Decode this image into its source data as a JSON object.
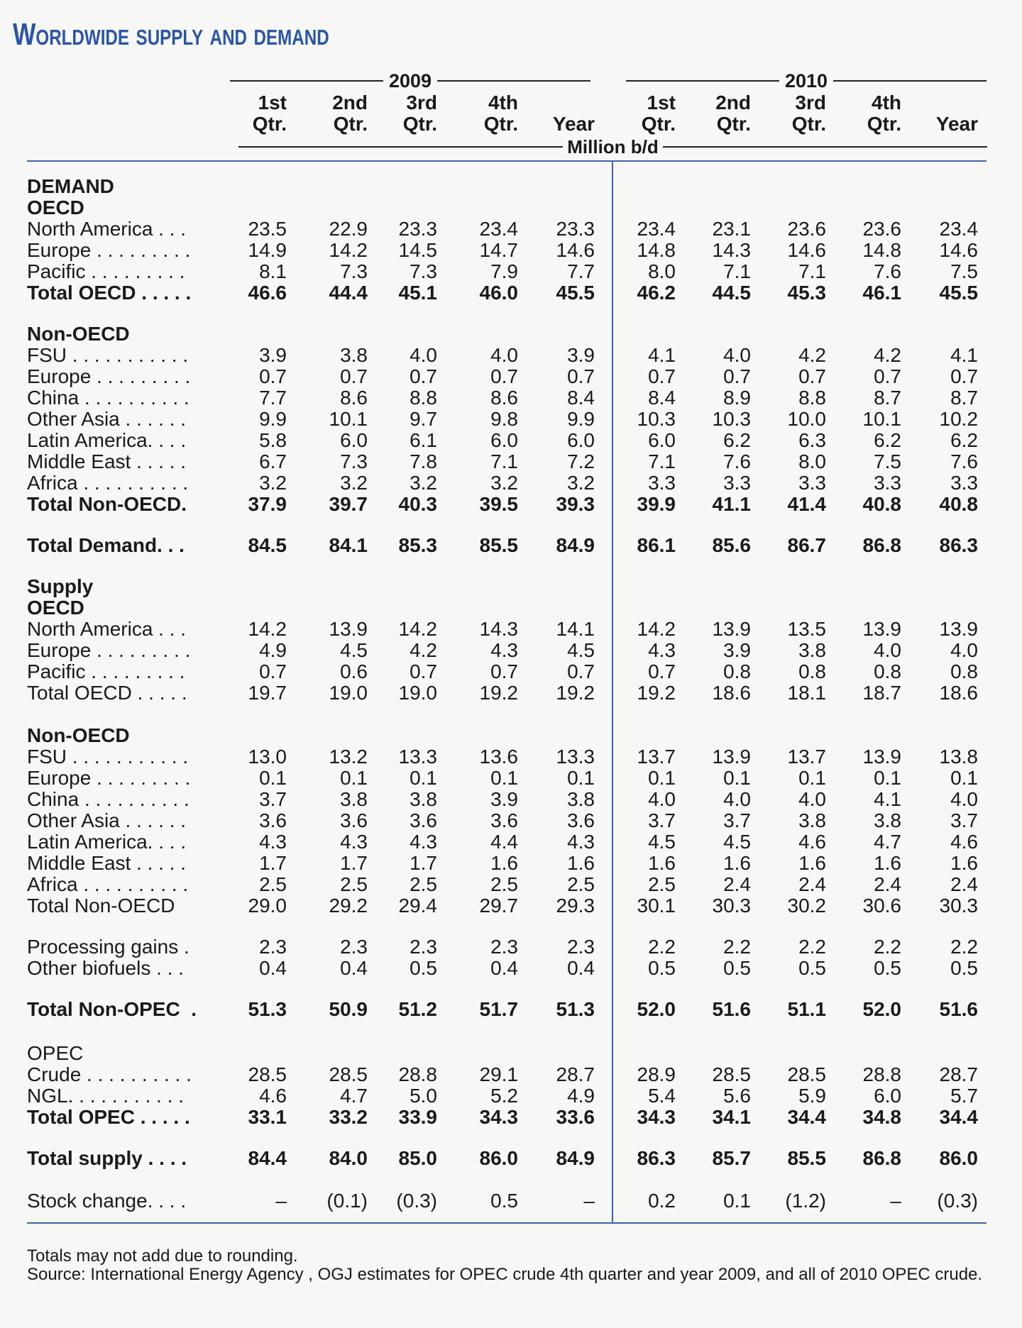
{
  "title": "Worldwide supply and demand",
  "years": [
    "2009",
    "2010"
  ],
  "column_headers": [
    "1st\nQtr.",
    "2nd\nQtr.",
    "3rd\nQtr.",
    "4th\nQtr.",
    "Year",
    "1st\nQtr.",
    "2nd\nQtr.",
    "3rd\nQtr.",
    "4th\nQtr.",
    "Year"
  ],
  "unit": "Million b/d",
  "sections": [
    {
      "heading": "DEMAND",
      "bold": true
    },
    {
      "heading": "OECD",
      "bold": true
    },
    {
      "heading": "Non-OECD",
      "bold": true
    },
    {
      "heading": "Supply",
      "bold": true
    },
    {
      "heading": "OECD",
      "bold": true
    },
    {
      "heading": "Non-OECD",
      "bold": true
    },
    {
      "heading": "OPEC",
      "bold": false
    }
  ],
  "rows": [
    {
      "label": "North America . . .",
      "bold": false,
      "values": [
        "23.5",
        "22.9",
        "23.3",
        "23.4",
        "23.3",
        "23.4",
        "23.1",
        "23.6",
        "23.6",
        "23.4"
      ]
    },
    {
      "label": "Europe . . . . . . . . .",
      "bold": false,
      "values": [
        "14.9",
        "14.2",
        "14.5",
        "14.7",
        "14.6",
        "14.8",
        "14.3",
        "14.6",
        "14.8",
        "14.6"
      ]
    },
    {
      "label": "Pacific . . . . . . . . .",
      "bold": false,
      "values": [
        "8.1",
        "7.3",
        "7.3",
        "7.9",
        "7.7",
        "8.0",
        "7.1",
        "7.1",
        "7.6",
        "7.5"
      ]
    },
    {
      "label": "Total OECD . . . . .",
      "bold": true,
      "values": [
        "46.6",
        "44.4",
        "45.1",
        "46.0",
        "45.5",
        "46.2",
        "44.5",
        "45.3",
        "46.1",
        "45.5"
      ]
    },
    {
      "label": "FSU . . . . . . . . . . .",
      "bold": false,
      "values": [
        "3.9",
        "3.8",
        "4.0",
        "4.0",
        "3.9",
        "4.1",
        "4.0",
        "4.2",
        "4.2",
        "4.1"
      ]
    },
    {
      "label": "Europe . . . . . . . . .",
      "bold": false,
      "values": [
        "0.7",
        "0.7",
        "0.7",
        "0.7",
        "0.7",
        "0.7",
        "0.7",
        "0.7",
        "0.7",
        "0.7"
      ]
    },
    {
      "label": "China . . . . . . . . . .",
      "bold": false,
      "values": [
        "7.7",
        "8.6",
        "8.8",
        "8.6",
        "8.4",
        "8.4",
        "8.9",
        "8.8",
        "8.7",
        "8.7"
      ]
    },
    {
      "label": "Other Asia . . . . . .",
      "bold": false,
      "values": [
        "9.9",
        "10.1",
        "9.7",
        "9.8",
        "9.9",
        "10.3",
        "10.3",
        "10.0",
        "10.1",
        "10.2"
      ]
    },
    {
      "label": "Latin America. . . .",
      "bold": false,
      "values": [
        "5.8",
        "6.0",
        "6.1",
        "6.0",
        "6.0",
        "6.0",
        "6.2",
        "6.3",
        "6.2",
        "6.2"
      ]
    },
    {
      "label": "Middle East . . . . .",
      "bold": false,
      "values": [
        "6.7",
        "7.3",
        "7.8",
        "7.1",
        "7.2",
        "7.1",
        "7.6",
        "8.0",
        "7.5",
        "7.6"
      ]
    },
    {
      "label": "Africa . . . . . . . . . .",
      "bold": false,
      "values": [
        "3.2",
        "3.2",
        "3.2",
        "3.2",
        "3.2",
        "3.3",
        "3.3",
        "3.3",
        "3.3",
        "3.3"
      ]
    },
    {
      "label": "Total Non-OECD.",
      "bold": true,
      "values": [
        "37.9",
        "39.7",
        "40.3",
        "39.5",
        "39.3",
        "39.9",
        "41.1",
        "41.4",
        "40.8",
        "40.8"
      ]
    },
    {
      "label": "Total Demand. . .",
      "bold": true,
      "values": [
        "84.5",
        "84.1",
        "85.3",
        "85.5",
        "84.9",
        "86.1",
        "85.6",
        "86.7",
        "86.8",
        "86.3"
      ]
    },
    {
      "label": "North America . . .",
      "bold": false,
      "values": [
        "14.2",
        "13.9",
        "14.2",
        "14.3",
        "14.1",
        "14.2",
        "13.9",
        "13.5",
        "13.9",
        "13.9"
      ]
    },
    {
      "label": "Europe . . . . . . . . .",
      "bold": false,
      "values": [
        "4.9",
        "4.5",
        "4.2",
        "4.3",
        "4.5",
        "4.3",
        "3.9",
        "3.8",
        "4.0",
        "4.0"
      ]
    },
    {
      "label": "Pacific . . . . . . . . .",
      "bold": false,
      "values": [
        "0.7",
        "0.6",
        "0.7",
        "0.7",
        "0.7",
        "0.7",
        "0.8",
        "0.8",
        "0.8",
        "0.8"
      ]
    },
    {
      "label": "Total OECD . . . . .",
      "bold": false,
      "values": [
        "19.7",
        "19.0",
        "19.0",
        "19.2",
        "19.2",
        "19.2",
        "18.6",
        "18.1",
        "18.7",
        "18.6"
      ]
    },
    {
      "label": "FSU . . . . . . . . . . .",
      "bold": false,
      "values": [
        "13.0",
        "13.2",
        "13.3",
        "13.6",
        "13.3",
        "13.7",
        "13.9",
        "13.7",
        "13.9",
        "13.8"
      ]
    },
    {
      "label": "Europe . . . . . . . . .",
      "bold": false,
      "values": [
        "0.1",
        "0.1",
        "0.1",
        "0.1",
        "0.1",
        "0.1",
        "0.1",
        "0.1",
        "0.1",
        "0.1"
      ]
    },
    {
      "label": "China . . . . . . . . . .",
      "bold": false,
      "values": [
        "3.7",
        "3.8",
        "3.8",
        "3.9",
        "3.8",
        "4.0",
        "4.0",
        "4.0",
        "4.1",
        "4.0"
      ]
    },
    {
      "label": "Other Asia . . . . . .",
      "bold": false,
      "values": [
        "3.6",
        "3.6",
        "3.6",
        "3.6",
        "3.6",
        "3.7",
        "3.7",
        "3.8",
        "3.8",
        "3.7"
      ]
    },
    {
      "label": "Latin America. . . .",
      "bold": false,
      "values": [
        "4.3",
        "4.3",
        "4.3",
        "4.4",
        "4.3",
        "4.5",
        "4.5",
        "4.6",
        "4.7",
        "4.6"
      ]
    },
    {
      "label": "Middle East . . . . .",
      "bold": false,
      "values": [
        "1.7",
        "1.7",
        "1.7",
        "1.6",
        "1.6",
        "1.6",
        "1.6",
        "1.6",
        "1.6",
        "1.6"
      ]
    },
    {
      "label": "Africa . . . . . . . . . .",
      "bold": false,
      "values": [
        "2.5",
        "2.5",
        "2.5",
        "2.5",
        "2.5",
        "2.5",
        "2.4",
        "2.4",
        "2.4",
        "2.4"
      ]
    },
    {
      "label": "Total Non-OECD",
      "bold": false,
      "values": [
        "29.0",
        "29.2",
        "29.4",
        "29.7",
        "29.3",
        "30.1",
        "30.3",
        "30.2",
        "30.6",
        "30.3"
      ]
    },
    {
      "label": "Processing gains .",
      "bold": false,
      "values": [
        "2.3",
        "2.3",
        "2.3",
        "2.3",
        "2.3",
        "2.2",
        "2.2",
        "2.2",
        "2.2",
        "2.2"
      ]
    },
    {
      "label": "Other biofuels . . .",
      "bold": false,
      "values": [
        "0.4",
        "0.4",
        "0.5",
        "0.4",
        "0.4",
        "0.5",
        "0.5",
        "0.5",
        "0.5",
        "0.5"
      ]
    },
    {
      "label": "Total Non-OPEC  .",
      "bold": true,
      "values": [
        "51.3",
        "50.9",
        "51.2",
        "51.7",
        "51.3",
        "52.0",
        "51.6",
        "51.1",
        "52.0",
        "51.6"
      ]
    },
    {
      "label": "Crude . . . . . . . . . .",
      "bold": false,
      "values": [
        "28.5",
        "28.5",
        "28.8",
        "29.1",
        "28.7",
        "28.9",
        "28.5",
        "28.5",
        "28.8",
        "28.7"
      ]
    },
    {
      "label": "NGL. . . . . . . . . . .",
      "bold": false,
      "values": [
        "4.6",
        "4.7",
        "5.0",
        "5.2",
        "4.9",
        "5.4",
        "5.6",
        "5.9",
        "6.0",
        "5.7"
      ]
    },
    {
      "label": "Total OPEC . . . . .",
      "bold": true,
      "values": [
        "33.1",
        "33.2",
        "33.9",
        "34.3",
        "33.6",
        "34.3",
        "34.1",
        "34.4",
        "34.8",
        "34.4"
      ]
    },
    {
      "label": "Total supply . . . .",
      "bold": true,
      "values": [
        "84.4",
        "84.0",
        "85.0",
        "86.0",
        "84.9",
        "86.3",
        "85.7",
        "85.5",
        "86.8",
        "86.0"
      ]
    },
    {
      "label": "Stock change. . . .",
      "bold": false,
      "values": [
        "–",
        "(0.1)",
        "(0.3)",
        "0.5",
        "–",
        "0.2",
        "0.1",
        "(1.2)",
        "–",
        "(0.3)"
      ]
    }
  ],
  "footnotes": [
    "Totals may not add due to rounding.",
    "Source: International Energy Agency , OGJ estimates for OPEC crude 4th quarter and year 2009, and all of 2010 OPEC crude."
  ]
}
